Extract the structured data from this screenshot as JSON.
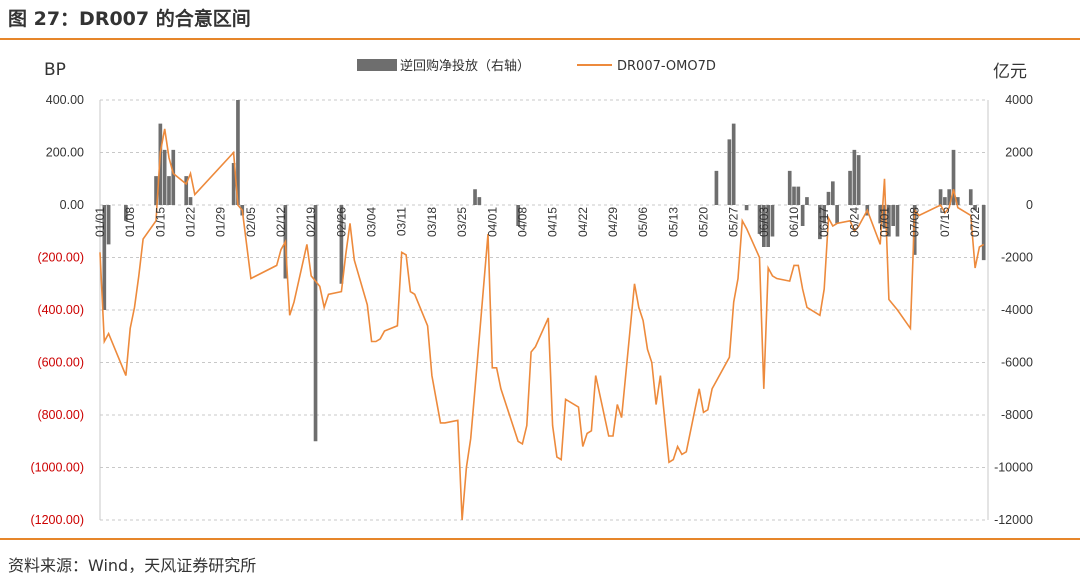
{
  "header": {
    "title": "图 27：DR007 的合意区间"
  },
  "footer": {
    "source": "资料来源：Wind，天风证券研究所"
  },
  "colors": {
    "accent": "#e6862a",
    "bar": "#6e6e6e",
    "line": "#ed8a3c",
    "neg_tick": "#cc0000"
  },
  "chart_data": {
    "type": "bar+line",
    "y_left_label": "BP",
    "y_right_label": "亿元",
    "y_left_ticks": [
      "400.00",
      "200.00",
      "0.00",
      "(200.00)",
      "(400.00)",
      "(600.00)",
      "(800.00)",
      "(1000.00)",
      "(1200.00)"
    ],
    "y_left_values": [
      400,
      200,
      0,
      -200,
      -400,
      -600,
      -800,
      -1000,
      -1200
    ],
    "y_right_ticks": [
      "4000",
      "2000",
      "0",
      "-2000",
      "-4000",
      "-6000",
      "-8000",
      "-10000",
      "-12000"
    ],
    "y_right_values": [
      4000,
      2000,
      0,
      -2000,
      -4000,
      -6000,
      -8000,
      -10000,
      -12000
    ],
    "ylim_left": [
      -1200,
      400
    ],
    "ylim_right": [
      -12000,
      4000
    ],
    "x_start": "2019-01-01",
    "x_end": "2019-07-26",
    "x_tick_labels": [
      "01/01",
      "01/08",
      "01/15",
      "01/22",
      "01/29",
      "02/05",
      "02/12",
      "02/19",
      "02/26",
      "03/04",
      "03/11",
      "03/18",
      "03/25",
      "04/01",
      "04/08",
      "04/15",
      "04/22",
      "04/29",
      "05/06",
      "05/13",
      "05/20",
      "05/27",
      "06/03",
      "06/10",
      "06/17",
      "06/24",
      "07/01",
      "07/08",
      "07/15",
      "07/22"
    ],
    "legend": [
      {
        "label": "逆回购净投放（右轴）",
        "kind": "bar"
      },
      {
        "label": "DR007-OMO7D",
        "kind": "line"
      }
    ],
    "series": [
      {
        "name": "逆回购净投放（右轴）",
        "axis": "right",
        "points": [
          [
            "01-02",
            -4000
          ],
          [
            "01-03",
            -1500
          ],
          [
            "01-07",
            -600
          ],
          [
            "01-14",
            1100
          ],
          [
            "01-15",
            3100
          ],
          [
            "01-16",
            2100
          ],
          [
            "01-17",
            1100
          ],
          [
            "01-18",
            2100
          ],
          [
            "01-21",
            1100
          ],
          [
            "01-22",
            300
          ],
          [
            "02-01",
            1600
          ],
          [
            "02-02",
            4000
          ],
          [
            "02-03",
            -400
          ],
          [
            "02-13",
            -2800
          ],
          [
            "02-20",
            -9000
          ],
          [
            "02-26",
            -3000
          ],
          [
            "03-29",
            600
          ],
          [
            "03-30",
            300
          ],
          [
            "04-08",
            -800
          ],
          [
            "05-24",
            1300
          ],
          [
            "05-27",
            2500
          ],
          [
            "05-28",
            3100
          ],
          [
            "05-31",
            -200
          ],
          [
            "06-03",
            -1100
          ],
          [
            "06-04",
            -1600
          ],
          [
            "06-05",
            -1600
          ],
          [
            "06-06",
            -1200
          ],
          [
            "06-10",
            1300
          ],
          [
            "06-11",
            700
          ],
          [
            "06-12",
            700
          ],
          [
            "06-13",
            -800
          ],
          [
            "06-14",
            300
          ],
          [
            "06-17",
            -1300
          ],
          [
            "06-18",
            -700
          ],
          [
            "06-19",
            500
          ],
          [
            "06-20",
            900
          ],
          [
            "06-21",
            -700
          ],
          [
            "06-24",
            1300
          ],
          [
            "06-25",
            2100
          ],
          [
            "06-26",
            1900
          ],
          [
            "06-28",
            -400
          ],
          [
            "07-01",
            -700
          ],
          [
            "07-02",
            -900
          ],
          [
            "07-03",
            -1200
          ],
          [
            "07-04",
            -800
          ],
          [
            "07-05",
            -1200
          ],
          [
            "07-09",
            -1900
          ],
          [
            "07-15",
            600
          ],
          [
            "07-16",
            300
          ],
          [
            "07-17",
            600
          ],
          [
            "07-18",
            2100
          ],
          [
            "07-19",
            300
          ],
          [
            "07-22",
            600
          ],
          [
            "07-23",
            -200
          ],
          [
            "07-25",
            -2100
          ]
        ]
      },
      {
        "name": "DR007-OMO7D",
        "axis": "left",
        "points": [
          [
            "01-01",
            -180
          ],
          [
            "01-02",
            -520
          ],
          [
            "01-03",
            -490
          ],
          [
            "01-07",
            -650
          ],
          [
            "01-08",
            -470
          ],
          [
            "01-09",
            -390
          ],
          [
            "01-10",
            -270
          ],
          [
            "01-11",
            -130
          ],
          [
            "01-14",
            -60
          ],
          [
            "01-15",
            200
          ],
          [
            "01-16",
            290
          ],
          [
            "01-17",
            180
          ],
          [
            "01-18",
            120
          ],
          [
            "01-21",
            80
          ],
          [
            "01-22",
            120
          ],
          [
            "01-23",
            40
          ],
          [
            "02-01",
            200
          ],
          [
            "02-02",
            0
          ],
          [
            "02-03",
            -20
          ],
          [
            "02-04",
            -150
          ],
          [
            "02-05",
            -280
          ],
          [
            "02-11",
            -230
          ],
          [
            "02-12",
            -170
          ],
          [
            "02-13",
            -140
          ],
          [
            "02-14",
            -420
          ],
          [
            "02-15",
            -370
          ],
          [
            "02-18",
            -150
          ],
          [
            "02-19",
            -270
          ],
          [
            "02-20",
            -290
          ],
          [
            "02-21",
            -310
          ],
          [
            "02-22",
            -390
          ],
          [
            "02-23",
            -340
          ],
          [
            "02-26",
            -330
          ],
          [
            "02-27",
            -190
          ],
          [
            "02-28",
            -70
          ],
          [
            "03-01",
            -210
          ],
          [
            "03-04",
            -380
          ],
          [
            "03-05",
            -520
          ],
          [
            "03-06",
            -520
          ],
          [
            "03-07",
            -510
          ],
          [
            "03-08",
            -480
          ],
          [
            "03-11",
            -460
          ],
          [
            "03-12",
            -180
          ],
          [
            "03-13",
            -190
          ],
          [
            "03-14",
            -330
          ],
          [
            "03-15",
            -340
          ],
          [
            "03-18",
            -460
          ],
          [
            "03-19",
            -650
          ],
          [
            "03-20",
            -740
          ],
          [
            "03-21",
            -830
          ],
          [
            "03-22",
            -830
          ],
          [
            "03-25",
            -820
          ],
          [
            "03-26",
            -1200
          ],
          [
            "03-27",
            -1000
          ],
          [
            "03-28",
            -890
          ],
          [
            "03-29",
            -700
          ],
          [
            "04-01",
            -110
          ],
          [
            "04-02",
            -620
          ],
          [
            "04-03",
            -620
          ],
          [
            "04-04",
            -700
          ],
          [
            "04-08",
            -900
          ],
          [
            "04-09",
            -910
          ],
          [
            "04-10",
            -840
          ],
          [
            "04-11",
            -560
          ],
          [
            "04-12",
            -540
          ],
          [
            "04-15",
            -430
          ],
          [
            "04-16",
            -840
          ],
          [
            "04-17",
            -960
          ],
          [
            "04-18",
            -970
          ],
          [
            "04-19",
            -740
          ],
          [
            "04-22",
            -770
          ],
          [
            "04-23",
            -920
          ],
          [
            "04-24",
            -870
          ],
          [
            "04-25",
            -860
          ],
          [
            "04-26",
            -650
          ],
          [
            "04-29",
            -880
          ],
          [
            "04-30",
            -880
          ],
          [
            "05-01",
            -760
          ],
          [
            "05-02",
            -810
          ],
          [
            "05-05",
            -300
          ],
          [
            "05-06",
            -390
          ],
          [
            "05-07",
            -440
          ],
          [
            "05-08",
            -550
          ],
          [
            "05-09",
            -600
          ],
          [
            "05-10",
            -760
          ],
          [
            "05-11",
            -650
          ],
          [
            "05-13",
            -980
          ],
          [
            "05-14",
            -970
          ],
          [
            "05-15",
            -920
          ],
          [
            "05-16",
            -950
          ],
          [
            "05-17",
            -940
          ],
          [
            "05-20",
            -700
          ],
          [
            "05-21",
            -790
          ],
          [
            "05-22",
            -780
          ],
          [
            "05-23",
            -700
          ],
          [
            "05-27",
            -580
          ],
          [
            "05-28",
            -370
          ],
          [
            "05-29",
            -280
          ],
          [
            "05-30",
            -60
          ],
          [
            "05-31",
            -90
          ],
          [
            "06-03",
            -200
          ],
          [
            "06-04",
            -700
          ],
          [
            "06-05",
            -240
          ],
          [
            "06-06",
            -270
          ],
          [
            "06-07",
            -280
          ],
          [
            "06-10",
            -290
          ],
          [
            "06-11",
            -230
          ],
          [
            "06-12",
            -230
          ],
          [
            "06-13",
            -320
          ],
          [
            "06-14",
            -390
          ],
          [
            "06-17",
            -420
          ],
          [
            "06-18",
            -320
          ],
          [
            "06-19",
            -50
          ],
          [
            "06-20",
            -80
          ],
          [
            "06-21",
            -70
          ],
          [
            "06-24",
            -60
          ],
          [
            "06-25",
            -100
          ],
          [
            "06-26",
            -80
          ],
          [
            "06-28",
            -20
          ],
          [
            "07-01",
            -150
          ],
          [
            "07-02",
            100
          ],
          [
            "07-03",
            -360
          ],
          [
            "07-04",
            -380
          ],
          [
            "07-05",
            -400
          ],
          [
            "07-08",
            -470
          ],
          [
            "07-09",
            -20
          ],
          [
            "07-10",
            -40
          ],
          [
            "07-15",
            0
          ],
          [
            "07-16",
            -30
          ],
          [
            "07-17",
            -10
          ],
          [
            "07-18",
            60
          ],
          [
            "07-19",
            -10
          ],
          [
            "07-22",
            -40
          ],
          [
            "07-23",
            -240
          ],
          [
            "07-24",
            -160
          ],
          [
            "07-25",
            -150
          ]
        ]
      }
    ]
  }
}
